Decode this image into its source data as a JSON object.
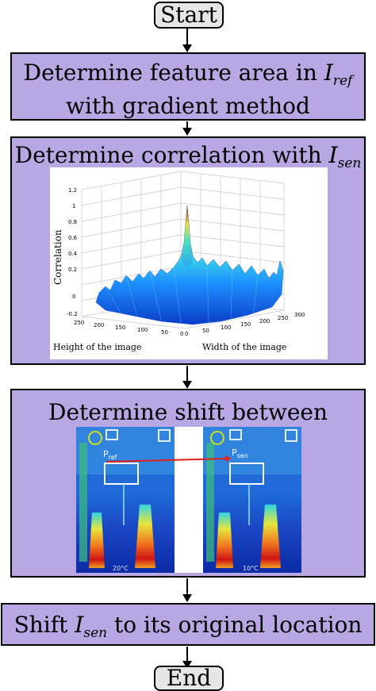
{
  "start": {
    "label": "Start"
  },
  "end": {
    "label": "End"
  },
  "step1": {
    "line1_prefix": "Determine feature area in",
    "var": "I",
    "var_sub": "ref",
    "line2": "with gradient method"
  },
  "step2": {
    "prefix": "Determine correlation with",
    "var": "I",
    "var_sub": "sen"
  },
  "step3": {
    "text": "Determine shift between images"
  },
  "step4": {
    "prefix": "Shift",
    "var": "I",
    "var_sub": "sen",
    "suffix": "to its original location"
  },
  "plot": {
    "zlabel": "Correlation",
    "xlabel": "Height of the image",
    "ylabel": "Width of the image",
    "z_ticks": [
      "1.2",
      "1",
      "0.8",
      "0.6",
      "0.4",
      "0.2",
      "0",
      "-0.2"
    ],
    "height_ticks": [
      "250",
      "200",
      "150",
      "100",
      "50",
      "0"
    ],
    "width_ticks": [
      "0",
      "50",
      "100",
      "150",
      "200",
      "250",
      "300"
    ]
  },
  "thermal": {
    "left_label": "P",
    "left_sub": "ref",
    "right_label": "P",
    "right_sub": "sen",
    "left_temp": "20°C",
    "right_temp": "10°C"
  },
  "colors": {
    "process_fill": "#b9a7e4",
    "terminal_fill": "#e6e6e6",
    "arrow": "#000000",
    "shift_arrow": "#e0201b"
  }
}
